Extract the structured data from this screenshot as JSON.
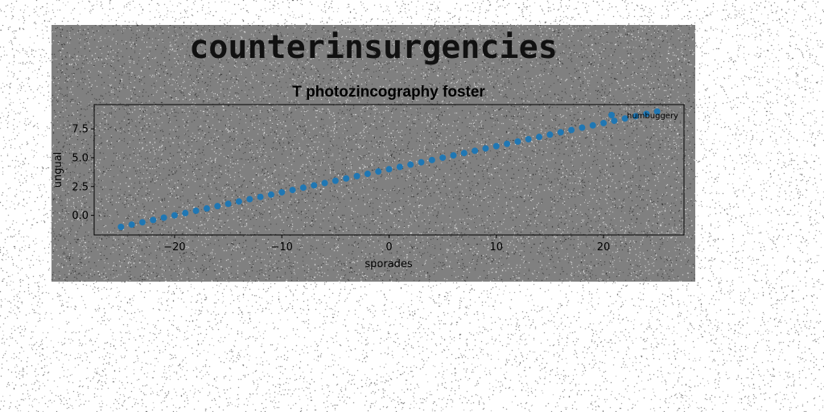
{
  "page_title": "counterinsurgencies",
  "chart_data": {
    "type": "scatter",
    "title": "T photozincography foster",
    "xlabel": "sporades",
    "ylabel": "ungual",
    "xlim": [
      -27.5,
      27.5
    ],
    "ylim": [
      -1.7,
      9.6
    ],
    "xticks": [
      -20,
      -10,
      0,
      10,
      20
    ],
    "xtick_labels": [
      "−20",
      "−10",
      "0",
      "10",
      "20"
    ],
    "yticks": [
      0.0,
      2.5,
      5.0,
      7.5
    ],
    "ytick_labels": [
      "0.0",
      "2.5",
      "5.0",
      "7.5"
    ],
    "grid": false,
    "legend_position": "top-right",
    "series": [
      {
        "name": "humbuggery",
        "color": "#1f77b4",
        "x": [
          -25,
          -24,
          -23,
          -22,
          -21,
          -20,
          -19,
          -18,
          -17,
          -16,
          -15,
          -14,
          -13,
          -12,
          -11,
          -10,
          -9,
          -8,
          -7,
          -6,
          -5,
          -4,
          -3,
          -2,
          -1,
          0,
          1,
          2,
          3,
          4,
          5,
          6,
          7,
          8,
          9,
          10,
          11,
          12,
          13,
          14,
          15,
          16,
          17,
          18,
          19,
          20,
          21,
          22,
          23,
          24,
          25
        ],
        "y": [
          -1.0,
          -0.8,
          -0.6,
          -0.4,
          -0.2,
          0.0,
          0.2,
          0.4,
          0.6,
          0.8,
          1.0,
          1.2,
          1.4,
          1.6,
          1.8,
          2.0,
          2.2,
          2.4,
          2.6,
          2.8,
          3.0,
          3.2,
          3.4,
          3.6,
          3.8,
          4.0,
          4.2,
          4.4,
          4.6,
          4.8,
          5.0,
          5.2,
          5.4,
          5.6,
          5.8,
          6.0,
          6.2,
          6.4,
          6.6,
          6.8,
          7.0,
          7.2,
          7.4,
          7.6,
          7.8,
          8.0,
          8.2,
          8.4,
          8.6,
          8.8,
          9.0
        ]
      }
    ]
  }
}
